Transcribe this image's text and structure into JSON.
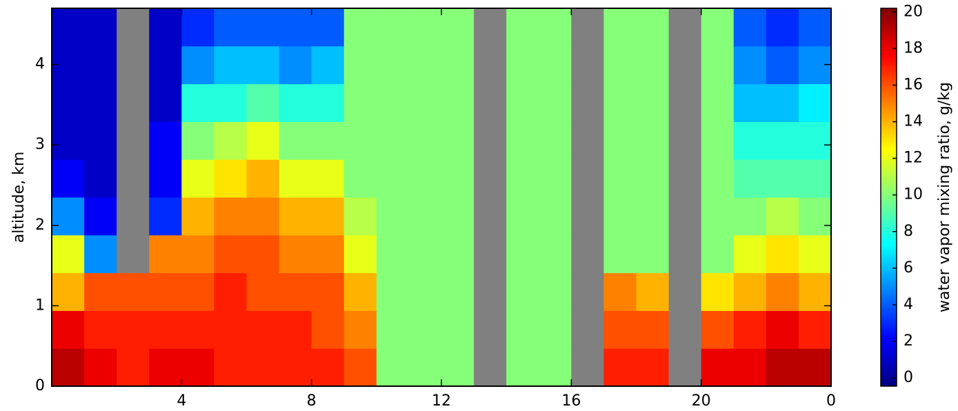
{
  "chart_data": {
    "type": "heatmap",
    "ylabel": "altitude, km",
    "colorbar_label": "water vapor mixing ratio, g/kg",
    "colormap": "jet",
    "missing_color": "#808080",
    "xlim": [
      0,
      24
    ],
    "ylim": [
      0,
      4.7
    ],
    "clim": [
      -0.45,
      20.2
    ],
    "xticks": [
      4,
      8,
      12,
      16,
      20,
      {
        "value": 24,
        "label": "0"
      }
    ],
    "yticks": [
      0,
      1,
      2,
      3,
      4
    ],
    "cticks": [
      0,
      2,
      4,
      6,
      8,
      10,
      12,
      14,
      16,
      18,
      20
    ],
    "xbins": [
      0,
      1,
      2,
      3,
      4,
      5,
      6,
      7,
      8,
      9,
      10,
      11,
      12,
      13,
      14,
      15,
      16,
      17,
      18,
      19,
      20,
      21,
      22,
      23,
      24
    ],
    "ybins": [
      0,
      0.47,
      0.94,
      1.41,
      1.88,
      2.35,
      2.82,
      3.29,
      3.76,
      4.23,
      4.7
    ],
    "z": [
      [
        19,
        18,
        17,
        18,
        18,
        17,
        17,
        17,
        17,
        16,
        10,
        10,
        10,
        null,
        10,
        10,
        null,
        17,
        17,
        null,
        18,
        18,
        19,
        19
      ],
      [
        18,
        17,
        17,
        17,
        17,
        17,
        17,
        17,
        16,
        15,
        10,
        10,
        10,
        null,
        10,
        10,
        null,
        16,
        16,
        null,
        16,
        17,
        18,
        17
      ],
      [
        14,
        16,
        16,
        16,
        16,
        17,
        16,
        16,
        16,
        14,
        10,
        10,
        10,
        null,
        10,
        10,
        null,
        15,
        14,
        null,
        13,
        14,
        15,
        14
      ],
      [
        12,
        5,
        null,
        15,
        15,
        16,
        16,
        15,
        15,
        12,
        10,
        10,
        10,
        null,
        10,
        10,
        null,
        10,
        10,
        null,
        10,
        12,
        13,
        12
      ],
      [
        5,
        2,
        null,
        3,
        14,
        15,
        15,
        14,
        14,
        11,
        10,
        10,
        10,
        null,
        10,
        10,
        null,
        10,
        10,
        null,
        10,
        10,
        11,
        10
      ],
      [
        2,
        1,
        null,
        2,
        12,
        13,
        14,
        12,
        12,
        10,
        10,
        10,
        10,
        null,
        10,
        10,
        null,
        10,
        10,
        null,
        10,
        9,
        9,
        9
      ],
      [
        1,
        1,
        null,
        2,
        10,
        11,
        12,
        10,
        10,
        10,
        10,
        10,
        10,
        null,
        10,
        10,
        null,
        10,
        10,
        null,
        10,
        8,
        8,
        8
      ],
      [
        1,
        1,
        null,
        1,
        8,
        8,
        9,
        8,
        8,
        10,
        10,
        10,
        10,
        null,
        10,
        10,
        null,
        10,
        10,
        null,
        10,
        6,
        6,
        7
      ],
      [
        1,
        1,
        null,
        1,
        5,
        6,
        6,
        5,
        6,
        10,
        10,
        10,
        10,
        null,
        10,
        10,
        null,
        10,
        10,
        null,
        10,
        5,
        4,
        5
      ],
      [
        1,
        1,
        null,
        1,
        3,
        4,
        4,
        4,
        4,
        10,
        10,
        10,
        10,
        null,
        10,
        10,
        null,
        10,
        10,
        null,
        10,
        4,
        3,
        4
      ]
    ]
  }
}
